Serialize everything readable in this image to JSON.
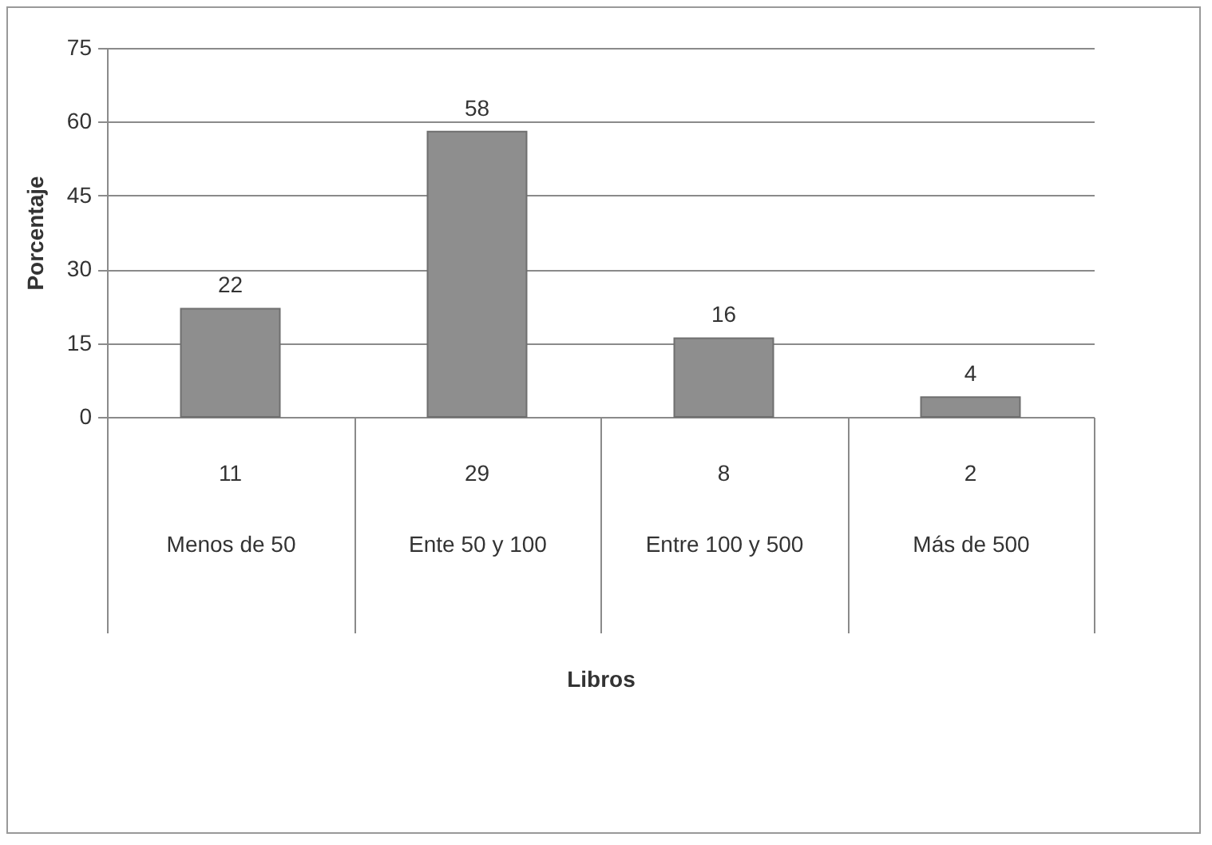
{
  "chart_data": {
    "type": "bar",
    "xlabel": "Libros",
    "ylabel": "Porcentaje",
    "categories": [
      "Menos de 50",
      "Ente 50 y 100",
      "Entre 100 y 500",
      "Más de 500"
    ],
    "values": [
      22,
      58,
      16,
      4
    ],
    "color": "#8e8e8e",
    "ylim": [
      0,
      75
    ],
    "yticks": [
      0,
      15,
      30,
      45,
      60,
      75
    ],
    "grid": "y",
    "data_labels": true,
    "annotations": [
      "11",
      "29",
      "8",
      "2"
    ]
  }
}
